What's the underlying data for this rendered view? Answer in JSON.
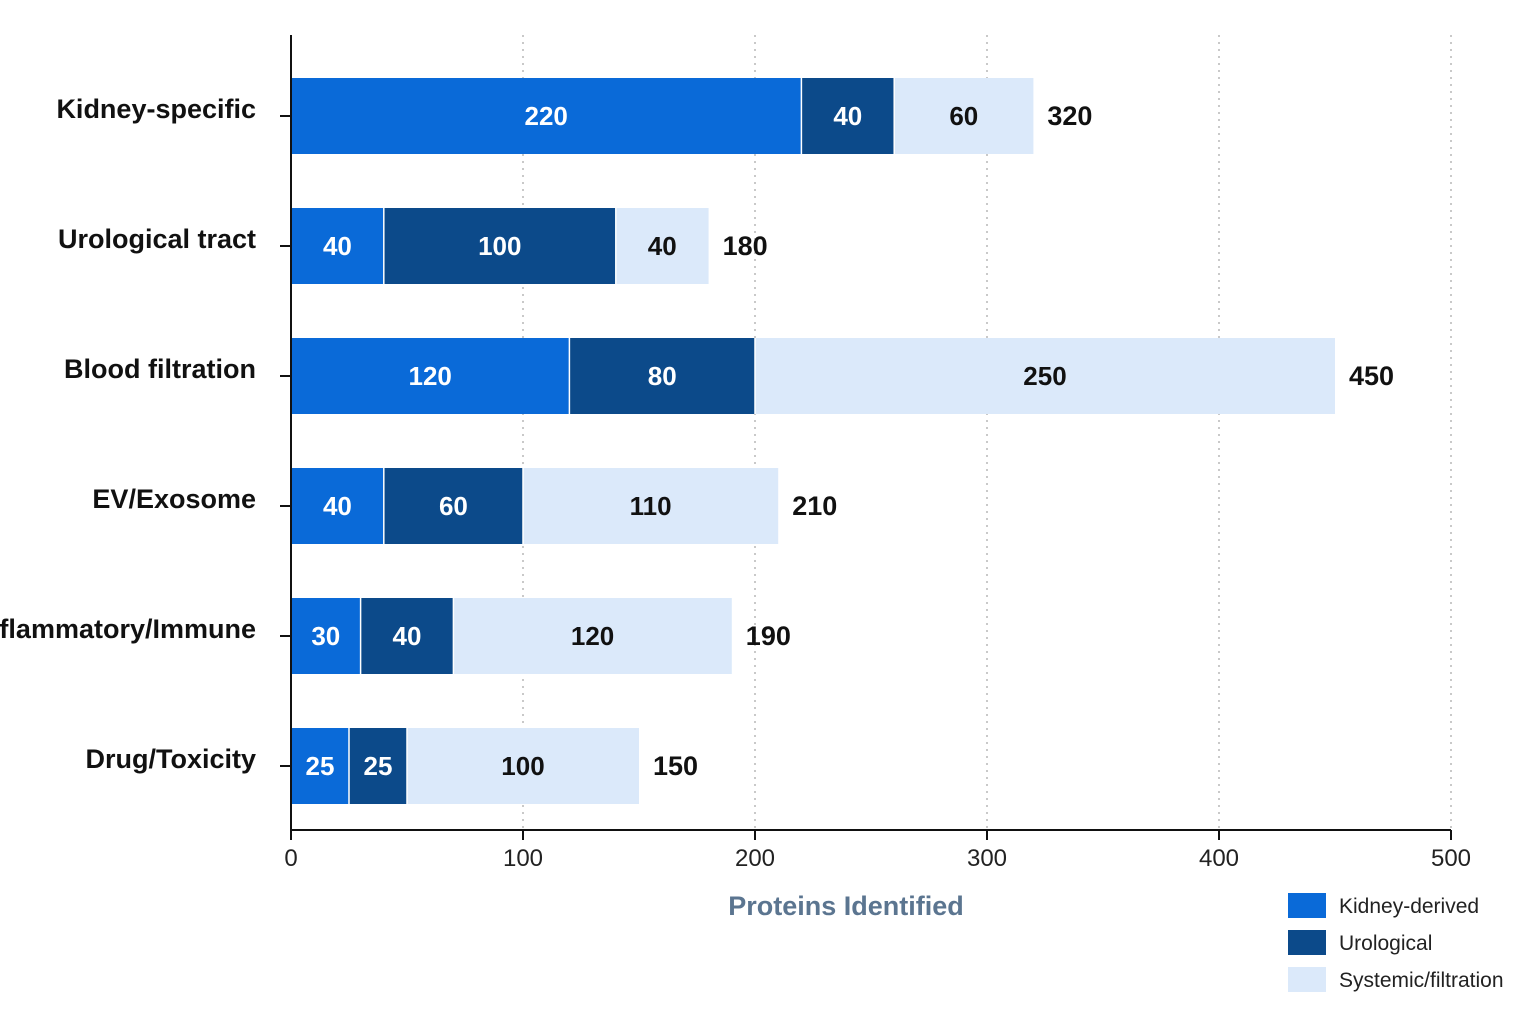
{
  "chart_data": {
    "type": "bar",
    "orientation": "horizontal",
    "stacked": true,
    "categories": [
      "Kidney-specific",
      "Urological tract",
      "Blood filtration",
      "EV/Exosome",
      "Inflammatory/Immune",
      "Drug/Toxicity"
    ],
    "series": [
      {
        "name": "Kidney-derived",
        "values": [
          220,
          40,
          120,
          40,
          30,
          25
        ],
        "color": "#0a6ad8",
        "label_color": "#ffffff"
      },
      {
        "name": "Urological",
        "values": [
          40,
          100,
          80,
          60,
          40,
          25
        ],
        "color": "#0c4a8a",
        "label_color": "#ffffff"
      },
      {
        "name": "Systemic/filtration",
        "values": [
          60,
          40,
          250,
          110,
          120,
          100
        ],
        "color": "#dbe9fa",
        "label_color": "#111111"
      }
    ],
    "totals": [
      "320",
      "180",
      "450",
      "210",
      "190",
      "150"
    ],
    "xlabel": "Proteins Identified",
    "xlabel_color": "#5b7590",
    "xlim": [
      0,
      500
    ],
    "xticks": [
      0,
      100,
      200,
      300,
      400,
      500
    ],
    "xtick_labels": [
      "0",
      "100",
      "200",
      "300",
      "400",
      "500"
    ],
    "grid": "vertical dotted",
    "legend_position": "bottom-right"
  }
}
